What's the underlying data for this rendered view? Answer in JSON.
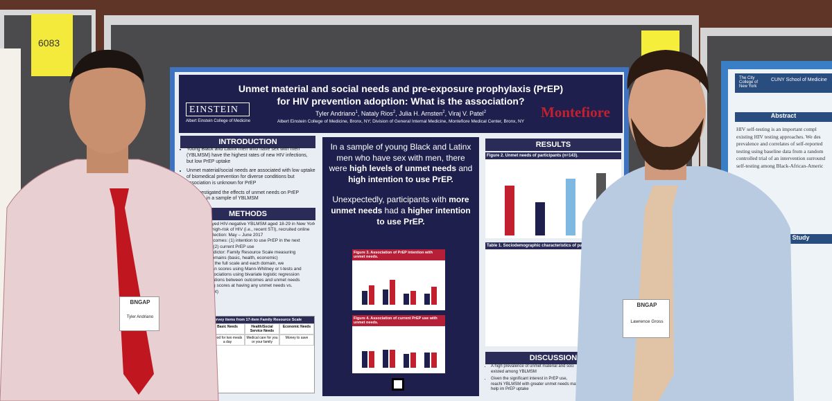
{
  "sticky_notes": [
    "6083"
  ],
  "poster": {
    "title_line_1": "Unmet material and social needs and pre-exposure prophylaxis (PrEP)",
    "title_line_2": "for HIV prevention adoption: What is the association?",
    "authors": [
      {
        "name": "Tyler Andriano",
        "sup": "1"
      },
      {
        "name": "Nataly Rios",
        "sup": "2"
      },
      {
        "name": "Julia H. Arnsten",
        "sup": "2"
      },
      {
        "name": "Viraj V. Patel",
        "sup": "2"
      }
    ],
    "affiliation": "Albert Einstein College of Medicine, Bronx, NY; Division of General Internal Medicine, Montefiore Medical Center, Bronx, NY",
    "logo_left": "EINSTEIN",
    "logo_left_sub": "Albert Einstein College of Medicine",
    "logo_right": "Montefiore",
    "introduction": {
      "heading": "INTRODUCTION",
      "bullets": [
        "Young Black and Latinx men who have sex with men (YBLMSM) have the highest rates of new HIV infections, but low PrEP uptake",
        "Unmet material/social needs are associated with low uptake of biomedical prevention for diverse conditions but association is unknown for PrEP",
        "We investigated the effects of unmet needs on PrEP adoption in a sample of YBLMSM"
      ]
    },
    "methods": {
      "heading": "METHODS",
      "lines": [
        "eyed HIV-negative YBLMSM aged 18-29 in New York",
        "t high-risk of HIV (i.e., recent STI), recruited online",
        "ollection: May – June 2017",
        "utcomes: (1) intention to use PrEP in the next",
        "d (2) current PrEP use",
        "redictor: Family Resource Scale measuring",
        "domains (basic, health, economic)",
        "or the full scale and each domain, we",
        "ean scores using Mann-Whitney or t-tests and",
        "ssociations using bivariate logistic regression",
        "ciations between outcomes and unmet needs",
        "ing scores at having any unmet needs vs.",
        "met)"
      ],
      "table_title": "Survey items from 17-item Family Resource Scale",
      "table_header": [
        "Basic Needs",
        "Health/Social Service Needs",
        "Economic Needs"
      ],
      "table_row": [
        "Food for two meals a day",
        "Medical care for you or your family",
        "Money to save"
      ]
    },
    "key_findings": [
      [
        {
          "text": "In a sample of young Black and Latinx men who have sex with men, there were ",
          "bold": false
        },
        {
          "text": "high levels of unmet needs",
          "bold": true
        },
        {
          "text": " and ",
          "bold": false
        },
        {
          "text": "high intention to use PrEP.",
          "bold": true
        }
      ],
      [
        {
          "text": "Unexpectedly, participants with ",
          "bold": false
        },
        {
          "text": "more unmet needs",
          "bold": true
        },
        {
          "text": " had a ",
          "bold": false
        },
        {
          "text": "higher intention to use PrEP.",
          "bold": true
        }
      ]
    ],
    "figure_3_title": "Figure 3. Association of PrEP intention with unmet needs.",
    "figure_4_title": "Figure 4. Association of current PrEP use with unmet needs.",
    "results": {
      "heading": "RESULTS",
      "figure_2_title": "Figure 2. Unmet needs of participants (n=143).",
      "table_1_title": "Table 1. Sociodemographic characteristics of partic"
    },
    "discussion": {
      "heading": "DISCUSSION",
      "bullets": [
        "A high prevalence of unmet material and soci existed among YBLMSM",
        "Given the significant interest in PrEP use, reachi YBLMSM with greater unmet needs may help im PrEP uptake"
      ]
    }
  },
  "badges": [
    {
      "header": "BNGAP",
      "name": "Tyler Andriano"
    },
    {
      "header": "BNGAP",
      "name": "Lawrence Gross"
    }
  ],
  "right_poster": {
    "logo_1": "The City College of New York",
    "logo_2": "CUNY School of Medicine",
    "abstract_heading": "Abstract",
    "study_heading": "Study",
    "abstract_lines": [
      "HIV self-testing is an important compl",
      "existing HIV testing approaches. We des",
      "prevalence and correlates of self-reported",
      "testing using baseline data from a random",
      "controlled trial of an intervention surround",
      "self-testing among Black-African-Americ"
    ]
  }
}
